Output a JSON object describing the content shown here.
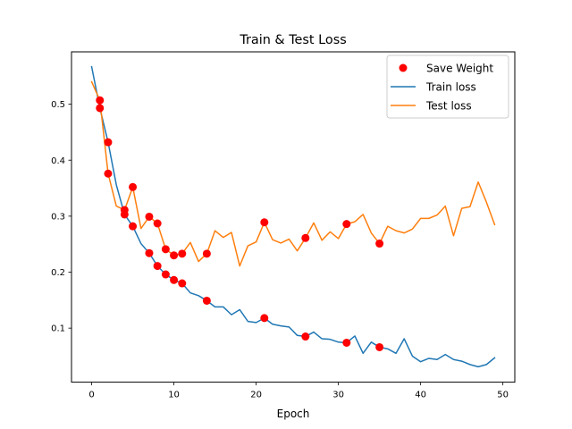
{
  "chart_data": {
    "type": "line",
    "title": "Train & Test Loss",
    "xlabel": "Epoch",
    "ylabel": "",
    "xlim": [
      -2.45,
      51.45
    ],
    "ylim": [
      0.0035,
      0.5935
    ],
    "xticks": [
      0,
      10,
      20,
      30,
      40,
      50
    ],
    "yticks": [
      0.1,
      0.2,
      0.3,
      0.4,
      0.5
    ],
    "xtick_labels": [
      "0",
      "10",
      "20",
      "30",
      "40",
      "50"
    ],
    "ytick_labels": [
      "0.1",
      "0.2",
      "0.3",
      "0.4",
      "0.5"
    ],
    "grid": false,
    "legend_position": "upper right",
    "series": [
      {
        "name": "Train loss",
        "color": "#1f77b4",
        "x": [
          0,
          1,
          2,
          3,
          4,
          5,
          6,
          7,
          8,
          9,
          10,
          11,
          12,
          13,
          14,
          15,
          16,
          17,
          18,
          19,
          20,
          21,
          22,
          23,
          24,
          25,
          26,
          27,
          28,
          29,
          30,
          31,
          32,
          33,
          34,
          35,
          36,
          37,
          38,
          39,
          40,
          41,
          42,
          43,
          44,
          45,
          46,
          47,
          48,
          49
        ],
        "values": [
          0.567,
          0.493,
          0.432,
          0.356,
          0.303,
          0.282,
          0.251,
          0.234,
          0.211,
          0.196,
          0.186,
          0.18,
          0.163,
          0.158,
          0.149,
          0.138,
          0.138,
          0.124,
          0.133,
          0.112,
          0.11,
          0.118,
          0.107,
          0.104,
          0.102,
          0.087,
          0.085,
          0.093,
          0.081,
          0.08,
          0.075,
          0.074,
          0.086,
          0.055,
          0.075,
          0.066,
          0.063,
          0.055,
          0.081,
          0.05,
          0.04,
          0.046,
          0.044,
          0.053,
          0.044,
          0.041,
          0.035,
          0.031,
          0.035,
          0.047
        ]
      },
      {
        "name": "Test loss",
        "color": "#ff7f0e",
        "x": [
          0,
          1,
          2,
          3,
          4,
          5,
          6,
          7,
          8,
          9,
          10,
          11,
          12,
          13,
          14,
          15,
          16,
          17,
          18,
          19,
          20,
          21,
          22,
          23,
          24,
          25,
          26,
          27,
          28,
          29,
          30,
          31,
          32,
          33,
          34,
          35,
          36,
          37,
          38,
          39,
          40,
          41,
          42,
          43,
          44,
          45,
          46,
          47,
          48,
          49
        ],
        "values": [
          0.54,
          0.507,
          0.376,
          0.318,
          0.311,
          0.352,
          0.278,
          0.299,
          0.287,
          0.241,
          0.23,
          0.233,
          0.253,
          0.219,
          0.233,
          0.274,
          0.262,
          0.271,
          0.211,
          0.247,
          0.254,
          0.289,
          0.258,
          0.252,
          0.259,
          0.238,
          0.261,
          0.288,
          0.257,
          0.272,
          0.26,
          0.286,
          0.29,
          0.303,
          0.27,
          0.251,
          0.282,
          0.274,
          0.27,
          0.277,
          0.296,
          0.296,
          0.302,
          0.318,
          0.265,
          0.314,
          0.317,
          0.361,
          0.325,
          0.285
        ]
      },
      {
        "name": "Save Weight",
        "type": "scatter",
        "color": "#ff0000",
        "x": [
          1,
          1,
          2,
          2,
          4,
          4,
          5,
          5,
          7,
          7,
          8,
          8,
          9,
          9,
          10,
          10,
          11,
          11,
          14,
          14,
          21,
          21,
          26,
          26,
          31,
          31,
          35,
          35
        ],
        "values": [
          0.507,
          0.493,
          0.432,
          0.376,
          0.311,
          0.303,
          0.352,
          0.282,
          0.299,
          0.234,
          0.287,
          0.211,
          0.241,
          0.196,
          0.23,
          0.186,
          0.233,
          0.18,
          0.233,
          0.149,
          0.289,
          0.118,
          0.261,
          0.085,
          0.286,
          0.074,
          0.251,
          0.066
        ]
      }
    ]
  }
}
